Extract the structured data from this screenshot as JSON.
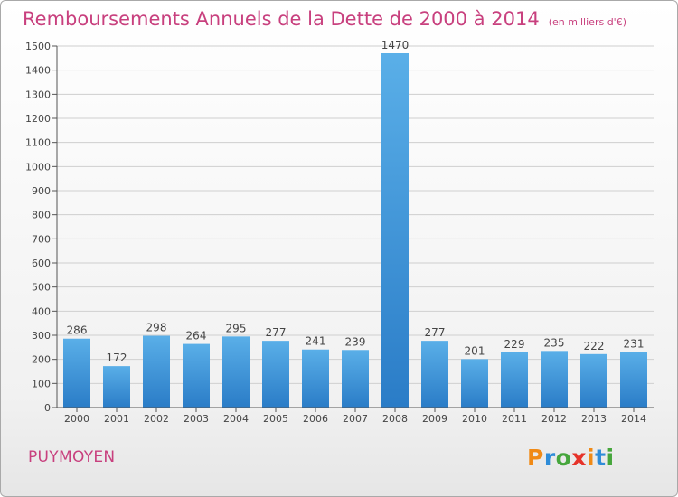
{
  "title": "Remboursements Annuels de la Dette de 2000 à 2014",
  "subtitle": "(en milliers d'€)",
  "town": "PUYMOYEN",
  "logo": {
    "text": "Proxiti",
    "letters": [
      "P",
      "r",
      "o",
      "x",
      "i",
      "t",
      "i"
    ],
    "colors": [
      "#f08a16",
      "#2f8cd8",
      "#46a63c",
      "#e6332a",
      "#f08a16",
      "#2f8cd8",
      "#46a63c"
    ]
  },
  "colors": {
    "bar_light": "#5aafe8",
    "bar_dark": "#2a7cc7",
    "accent": "#c8407e"
  },
  "chart_data": {
    "type": "bar",
    "title": "Remboursements Annuels de la Dette de 2000 à 2014",
    "subtitle": "(en milliers d'€)",
    "xlabel": "",
    "ylabel": "",
    "categories": [
      "2000",
      "2001",
      "2002",
      "2003",
      "2004",
      "2005",
      "2006",
      "2007",
      "2008",
      "2009",
      "2010",
      "2011",
      "2012",
      "2013",
      "2014"
    ],
    "values": [
      286,
      172,
      298,
      264,
      295,
      277,
      241,
      239,
      1470,
      277,
      201,
      229,
      235,
      222,
      231
    ],
    "ylim": [
      0,
      1500
    ],
    "yticks": [
      0,
      100,
      200,
      300,
      400,
      500,
      600,
      700,
      800,
      900,
      1000,
      1100,
      1200,
      1300,
      1400,
      1500
    ],
    "grid": true,
    "legend": "none"
  }
}
